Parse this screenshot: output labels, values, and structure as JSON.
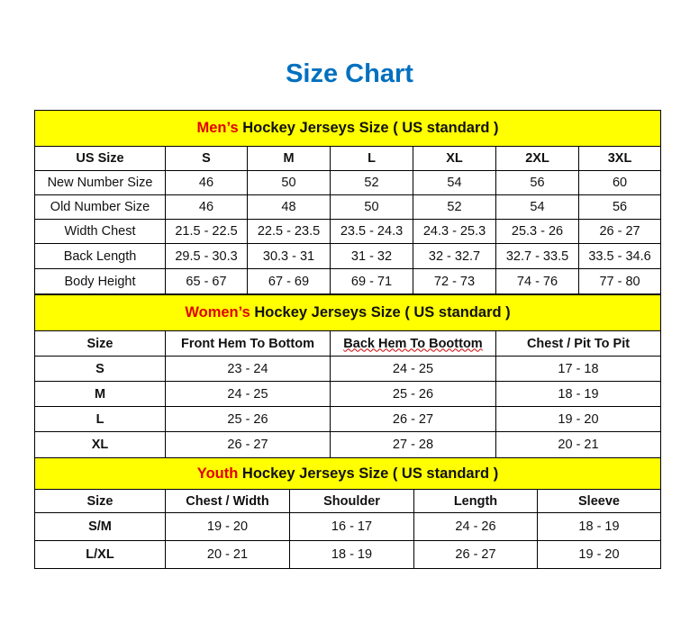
{
  "title": "Size Chart",
  "colors": {
    "title": "#0070c0",
    "header_bg": "#ffff00",
    "accent": "#e00000"
  },
  "men": {
    "heading_accent": "Men’s",
    "heading_rest": " Hockey Jerseys Size ( US standard )",
    "columns": [
      "US Size",
      "S",
      "M",
      "L",
      "XL",
      "2XL",
      "3XL"
    ],
    "rows": [
      [
        "New Number Size",
        "46",
        "50",
        "52",
        "54",
        "56",
        "60"
      ],
      [
        "Old Number Size",
        "46",
        "48",
        "50",
        "52",
        "54",
        "56"
      ],
      [
        "Width Chest",
        "21.5 - 22.5",
        "22.5 - 23.5",
        "23.5 - 24.3",
        "24.3 - 25.3",
        "25.3 - 26",
        "26 - 27"
      ],
      [
        "Back Length",
        "29.5 - 30.3",
        "30.3 - 31",
        "31 - 32",
        "32 - 32.7",
        "32.7 - 33.5",
        "33.5 - 34.6"
      ],
      [
        "Body Height",
        "65 - 67",
        "67 - 69",
        "69 - 71",
        "72 - 73",
        "74 - 76",
        "77 - 80"
      ]
    ]
  },
  "women": {
    "heading_accent": "Women’s",
    "heading_rest": " Hockey Jerseys Size ( US standard )",
    "columns": [
      "Size",
      "Front Hem To Bottom",
      "Back Hem To Boottom",
      "Chest / Pit To Pit"
    ],
    "rows": [
      [
        "S",
        "23 - 24",
        "24 - 25",
        "17 - 18"
      ],
      [
        "M",
        "24 - 25",
        "25 - 26",
        "18 - 19"
      ],
      [
        "L",
        "25 - 26",
        "26 - 27",
        "19 - 20"
      ],
      [
        "XL",
        "26 - 27",
        "27 - 28",
        "20 - 21"
      ]
    ]
  },
  "youth": {
    "heading_accent": "Youth",
    "heading_rest": " Hockey Jerseys Size ( US standard )",
    "columns": [
      "Size",
      "Chest / Width",
      "Shoulder",
      "Length",
      "Sleeve"
    ],
    "rows": [
      [
        "S/M",
        "19 - 20",
        "16 - 17",
        "24 - 26",
        "18 - 19"
      ],
      [
        "L/XL",
        "20 - 21",
        "18 - 19",
        "26 - 27",
        "19 - 20"
      ]
    ]
  }
}
